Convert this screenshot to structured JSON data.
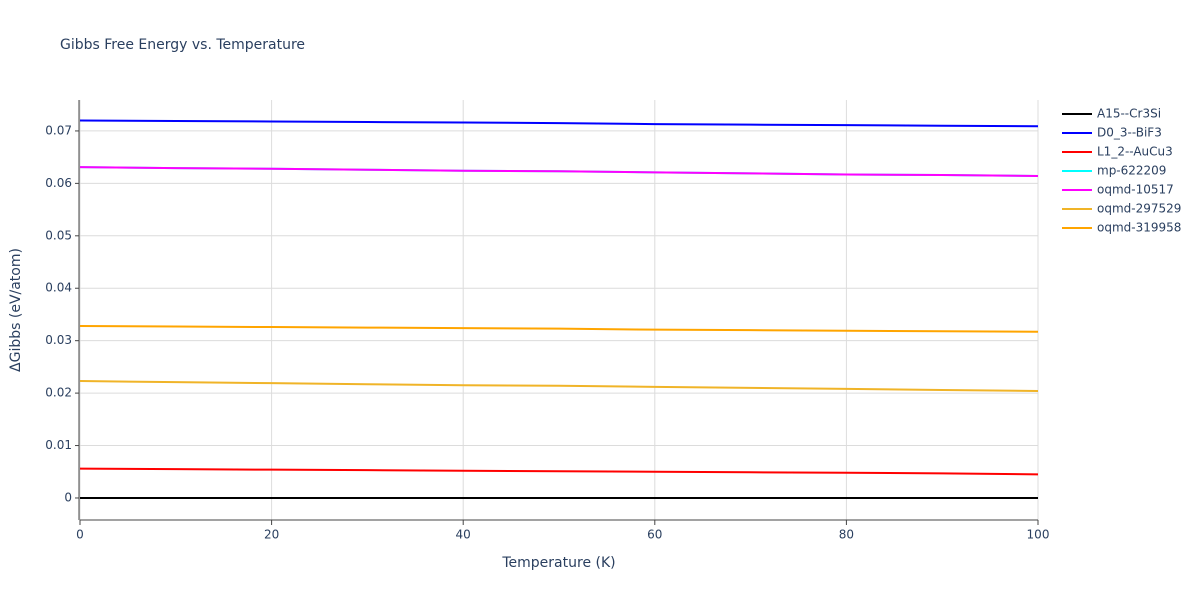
{
  "chart_data": {
    "type": "line",
    "title": "Gibbs Free Energy vs. Temperature",
    "x_label": "Temperature (K)",
    "y_label": "ΔGibbs (eV/atom)",
    "x": [
      0,
      10,
      20,
      30,
      40,
      50,
      60,
      70,
      80,
      90,
      100
    ],
    "series": [
      {
        "name": "A15--Cr3Si",
        "color": "#000000",
        "values": [
          0,
          0,
          0,
          0,
          0,
          0,
          0,
          0,
          0,
          0,
          0
        ]
      },
      {
        "name": "D0_3--BiF3",
        "color": "#0000ff",
        "values": [
          0.072,
          0.0719,
          0.0718,
          0.0717,
          0.0716,
          0.0715,
          0.0713,
          0.0712,
          0.0711,
          0.071,
          0.0709
        ]
      },
      {
        "name": "L1_2--AuCu3",
        "color": "#ff0000",
        "values": [
          0.0056,
          0.0055,
          0.0054,
          0.0053,
          0.0052,
          0.0051,
          0.005,
          0.0049,
          0.0048,
          0.0047,
          0.0045
        ]
      },
      {
        "name": "mp-622209",
        "color": "#00ffff",
        "values": [
          0.0631,
          0.0629,
          0.0628,
          0.0626,
          0.0624,
          0.0623,
          0.0621,
          0.0619,
          0.0617,
          0.0616,
          0.0614
        ]
      },
      {
        "name": "oqmd-10517",
        "color": "#ff00ff",
        "values": [
          0.0631,
          0.0629,
          0.0628,
          0.0626,
          0.0624,
          0.0623,
          0.0621,
          0.0619,
          0.0617,
          0.0616,
          0.0614
        ]
      },
      {
        "name": "oqmd-297529",
        "color": "#f0b428",
        "values": [
          0.0223,
          0.0221,
          0.0219,
          0.0217,
          0.0215,
          0.0214,
          0.0212,
          0.021,
          0.0208,
          0.0206,
          0.0204
        ]
      },
      {
        "name": "oqmd-319958",
        "color": "#ffa500",
        "values": [
          0.0328,
          0.0327,
          0.0326,
          0.0325,
          0.0324,
          0.0323,
          0.0321,
          0.032,
          0.0319,
          0.0318,
          0.0317
        ]
      }
    ],
    "xlim": [
      0,
      100
    ],
    "xticks": [
      0,
      20,
      40,
      60,
      80,
      100
    ],
    "ylim": [
      -0.0042,
      0.0759
    ],
    "yticks": [
      0,
      0.01,
      0.02,
      0.03,
      0.04,
      0.05,
      0.06,
      0.07
    ],
    "grid": true,
    "legend": "right"
  }
}
